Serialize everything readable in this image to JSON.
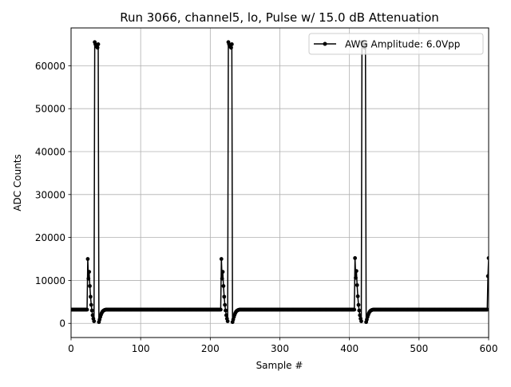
{
  "chart_data": {
    "type": "line",
    "title": "Run 3066, channel5, lo, Pulse w/ 15.0 dB Attenuation",
    "xlabel": "Sample #",
    "ylabel": "ADC Counts",
    "xlim": [
      0,
      600
    ],
    "ylim": [
      -3300,
      68800
    ],
    "x_ticks": [
      0,
      100,
      200,
      300,
      400,
      500,
      600
    ],
    "y_ticks": [
      0,
      10000,
      20000,
      30000,
      40000,
      50000,
      60000
    ],
    "x_tick_labels": [
      "0",
      "100",
      "200",
      "300",
      "400",
      "500",
      "600"
    ],
    "y_tick_labels": [
      "0",
      "10000",
      "20000",
      "30000",
      "40000",
      "50000",
      "60000"
    ],
    "grid": true,
    "legend_position": "top-right",
    "series": [
      {
        "name": "AWG Amplitude: 6.0Vpp",
        "color": "#000000",
        "marker": "circle",
        "baseline": 3200,
        "samples": 601,
        "pulses": [
          {
            "start": 24,
            "values": [
              15000,
              10400,
              12000,
              8700,
              6200,
              4300,
              3000,
              1900,
              1100,
              500,
              65500,
              65000,
              64500,
              64800,
              64200,
              65000,
              300,
              900,
              1500,
              2000,
              2400,
              2700,
              2900,
              3000,
              3100,
              3150
            ]
          },
          {
            "start": 216,
            "values": [
              15000,
              10400,
              12000,
              8700,
              6200,
              4300,
              3000,
              1900,
              1100,
              500,
              65500,
              65000,
              64500,
              64800,
              64200,
              65000,
              300,
              900,
              1500,
              2000,
              2400,
              2700,
              2900,
              3000,
              3100,
              3150
            ]
          },
          {
            "start": 408,
            "values": [
              15200,
              10600,
              12200,
              8900,
              6300,
              4300,
              3000,
              1900,
              1100,
              500,
              65500,
              65000,
              64500,
              64800,
              64200,
              65000,
              300,
              900,
              1500,
              2000,
              2400,
              2700,
              2900,
              3000,
              3100,
              3150
            ]
          },
          {
            "start": 599,
            "values": [
              11000,
              15200
            ]
          }
        ]
      }
    ]
  }
}
